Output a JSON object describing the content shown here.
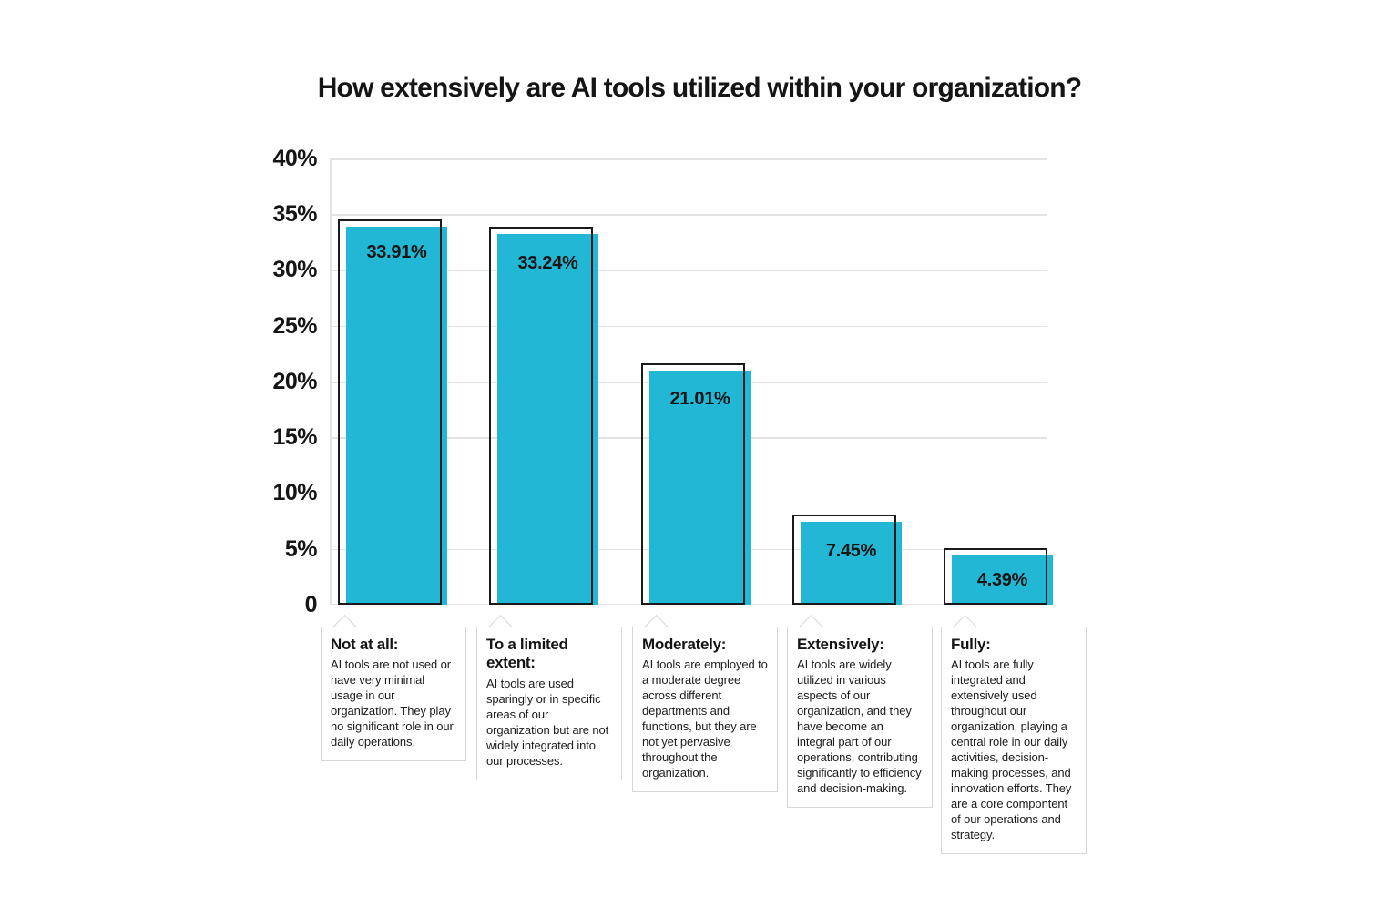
{
  "title": "How extensively are AI tools utilized within your organization?",
  "colors": {
    "bar_fill": "#21b7d5",
    "bar_outline": "#1a1a1a",
    "gridline": "#e3e3e3",
    "box_border": "#d6d6d6",
    "text": "#151515"
  },
  "y_axis": {
    "tick_labels": [
      "40%",
      "35%",
      "30%",
      "25%",
      "20%",
      "15%",
      "10%",
      "5%",
      "0"
    ]
  },
  "chart_data": {
    "type": "bar",
    "title": "How extensively are AI tools utilized within your organization?",
    "categories": [
      "Not at all",
      "To a limited extent",
      "Moderately",
      "Extensively",
      "Fully"
    ],
    "values": [
      33.91,
      33.24,
      21.01,
      7.45,
      4.39
    ],
    "value_labels": [
      "33.91%",
      "33.24%",
      "21.01%",
      "7.45%",
      "4.39%"
    ],
    "xlabel": "",
    "ylabel": "",
    "ylim": [
      0,
      40
    ],
    "ytick_step": 5,
    "grid": true,
    "legend": false
  },
  "callouts": [
    {
      "heading": "Not at all:",
      "description": "AI tools are not used or have very minimal usage in our organization. They play no significant role in our daily operations."
    },
    {
      "heading": "To a limited extent:",
      "description": "AI tools are used sparingly or in specific areas of our organization but are not widely integrated into our processes."
    },
    {
      "heading": "Moderately:",
      "description": "AI tools are employed to a moderate degree across different departments and functions, but they are not yet pervasive throughout the organization."
    },
    {
      "heading": "Extensively:",
      "description": "AI tools are widely utilized in various aspects of our organization, and they have become an integral part of our operations, contributing significantly to efficiency and decision-making."
    },
    {
      "heading": "Fully:",
      "description": "AI tools are fully integrated and extensively used throughout our organization, playing a central role in our daily activities, decision-making processes, and innovation efforts. They are a core compontent of our operations and strategy."
    }
  ]
}
